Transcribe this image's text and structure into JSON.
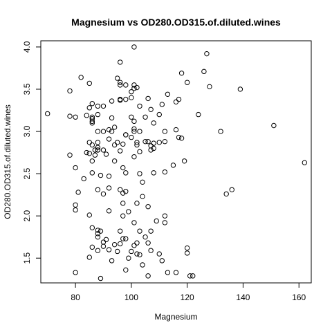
{
  "chart_data": {
    "type": "scatter",
    "title": "Magnesium vs OD280.OD315.of.diluted.wines",
    "xlabel": "Magnesium",
    "ylabel": "OD280.OD315.of.diluted.wines",
    "xlim": [
      67.6,
      164.4
    ],
    "ylim": [
      1.207,
      4.073
    ],
    "x_ticks": [
      80,
      100,
      120,
      140,
      160
    ],
    "y_ticks": [
      1.5,
      2.0,
      2.5,
      3.0,
      3.5,
      4.0
    ],
    "x_tick_labels": [
      "80",
      "100",
      "120",
      "140",
      "160"
    ],
    "y_tick_labels": [
      "1.5",
      "2.0",
      "2.5",
      "3.0",
      "3.5",
      "4.0"
    ],
    "grid": false,
    "marker": "open-circle",
    "points": [
      [
        70,
        3.21
      ],
      [
        78,
        3.48
      ],
      [
        78,
        3.18
      ],
      [
        78,
        2.72
      ],
      [
        80,
        3.17
      ],
      [
        80,
        2.57
      ],
      [
        80,
        2.13
      ],
      [
        80,
        2.07
      ],
      [
        80,
        1.33
      ],
      [
        81,
        2.28
      ],
      [
        82,
        3.64
      ],
      [
        83,
        2.44
      ],
      [
        84,
        3.19
      ],
      [
        84,
        2.75
      ],
      [
        85,
        3.57
      ],
      [
        85,
        3.28
      ],
      [
        85,
        2.87
      ],
      [
        85,
        2.74
      ],
      [
        85,
        2.01
      ],
      [
        85,
        1.51
      ],
      [
        86,
        3.33
      ],
      [
        86,
        3.17
      ],
      [
        86,
        3.15
      ],
      [
        86,
        3.12
      ],
      [
        86,
        3.1
      ],
      [
        86,
        2.84
      ],
      [
        86,
        2.65
      ],
      [
        86,
        2.51
      ],
      [
        86,
        1.86
      ],
      [
        86,
        1.63
      ],
      [
        87,
        2.78
      ],
      [
        87,
        2.72
      ],
      [
        88,
        3.3
      ],
      [
        88,
        3.2
      ],
      [
        88,
        3.0
      ],
      [
        88,
        2.87
      ],
      [
        88,
        2.81
      ],
      [
        88,
        2.78
      ],
      [
        88,
        2.78
      ],
      [
        88,
        2.31
      ],
      [
        88,
        1.83
      ],
      [
        88,
        1.79
      ],
      [
        88,
        1.75
      ],
      [
        88,
        1.59
      ],
      [
        89,
        2.48
      ],
      [
        89,
        1.82
      ],
      [
        89,
        1.26
      ],
      [
        90,
        3.3
      ],
      [
        90,
        3.0
      ],
      [
        90,
        2.78
      ],
      [
        90,
        2.26
      ],
      [
        90,
        1.69
      ],
      [
        90,
        1.64
      ],
      [
        91,
        2.73
      ],
      [
        91,
        1.72
      ],
      [
        92,
        3.02
      ],
      [
        92,
        2.91
      ],
      [
        92,
        2.47
      ],
      [
        92,
        2.33
      ],
      [
        92,
        2.06
      ],
      [
        92,
        1.6
      ],
      [
        93,
        3.36
      ],
      [
        93,
        3.16
      ],
      [
        93,
        3.0
      ],
      [
        93,
        1.47
      ],
      [
        94,
        3.05
      ],
      [
        94,
        2.84
      ],
      [
        94,
        2.65
      ],
      [
        94,
        1.66
      ],
      [
        95,
        3.63
      ],
      [
        95,
        2.87
      ],
      [
        95,
        1.58
      ],
      [
        96,
        3.58
      ],
      [
        96,
        3.55
      ],
      [
        96,
        3.38
      ],
      [
        96,
        3.82
      ],
      [
        96,
        3.37
      ],
      [
        96,
        2.77
      ],
      [
        96,
        2.31
      ],
      [
        96,
        1.82
      ],
      [
        96,
        1.67
      ],
      [
        97,
        2.85
      ],
      [
        97,
        2.57
      ],
      [
        97,
        2.27
      ],
      [
        97,
        2.15
      ],
      [
        97,
        2.0
      ],
      [
        97,
        1.73
      ],
      [
        98,
        3.55
      ],
      [
        98,
        3.38
      ],
      [
        98,
        2.96
      ],
      [
        98,
        2.96
      ],
      [
        98,
        2.51
      ],
      [
        98,
        2.29
      ],
      [
        98,
        1.73
      ],
      [
        98,
        1.36
      ],
      [
        99,
        2.05
      ],
      [
        99,
        1.5
      ],
      [
        100,
        3.47
      ],
      [
        100,
        3.4
      ],
      [
        100,
        3.17
      ],
      [
        100,
        2.93
      ],
      [
        100,
        1.58
      ],
      [
        101,
        3.55
      ],
      [
        101,
        3.51
      ],
      [
        101,
        3.12
      ],
      [
        101,
        3.03
      ],
      [
        101,
        3.0
      ],
      [
        101,
        2.7
      ],
      [
        101,
        1.65
      ],
      [
        101,
        1.92
      ],
      [
        101,
        4.0
      ],
      [
        102,
        3.52
      ],
      [
        102,
        2.87
      ],
      [
        102,
        2.84
      ],
      [
        102,
        2.15
      ],
      [
        102,
        1.68
      ],
      [
        102,
        1.55
      ],
      [
        103,
        3.3
      ],
      [
        103,
        3.0
      ],
      [
        103,
        2.76
      ],
      [
        103,
        2.5
      ],
      [
        103,
        1.82
      ],
      [
        103,
        1.54
      ],
      [
        104,
        2.4
      ],
      [
        104,
        2.23
      ],
      [
        104,
        1.42
      ],
      [
        105,
        3.17
      ],
      [
        105,
        2.88
      ],
      [
        105,
        1.75
      ],
      [
        106,
        3.39
      ],
      [
        106,
        2.88
      ],
      [
        106,
        2.11
      ],
      [
        106,
        1.68
      ],
      [
        106,
        1.29
      ],
      [
        107,
        3.26
      ],
      [
        107,
        2.83
      ],
      [
        107,
        2.78
      ],
      [
        107,
        1.59
      ],
      [
        107,
        1.82
      ],
      [
        108,
        3.1
      ],
      [
        108,
        2.86
      ],
      [
        108,
        2.8
      ],
      [
        108,
        2.51
      ],
      [
        109,
        1.94
      ],
      [
        110,
        3.2
      ],
      [
        110,
        2.87
      ],
      [
        110,
        1.55
      ],
      [
        111,
        3.32
      ],
      [
        111,
        1.47
      ],
      [
        112,
        3.0
      ],
      [
        112,
        2.88
      ],
      [
        112,
        2.52
      ],
      [
        112,
        2.0
      ],
      [
        112,
        1.92
      ],
      [
        113,
        3.44
      ],
      [
        113,
        1.33
      ],
      [
        115,
        2.6
      ],
      [
        116,
        3.02
      ],
      [
        116,
        3.35
      ],
      [
        116,
        1.33
      ],
      [
        117,
        2.93
      ],
      [
        117,
        3.38
      ],
      [
        118,
        3.69
      ],
      [
        118,
        2.92
      ],
      [
        119,
        2.65
      ],
      [
        120,
        3.58
      ],
      [
        120,
        1.62
      ],
      [
        120,
        1.56
      ],
      [
        121,
        1.29
      ],
      [
        122,
        1.29
      ],
      [
        124,
        3.2
      ],
      [
        126,
        3.71
      ],
      [
        127,
        3.92
      ],
      [
        128,
        3.53
      ],
      [
        132,
        3.0
      ],
      [
        134,
        2.26
      ],
      [
        136,
        2.31
      ],
      [
        139,
        3.5
      ],
      [
        151,
        3.07
      ],
      [
        162,
        2.63
      ]
    ]
  }
}
